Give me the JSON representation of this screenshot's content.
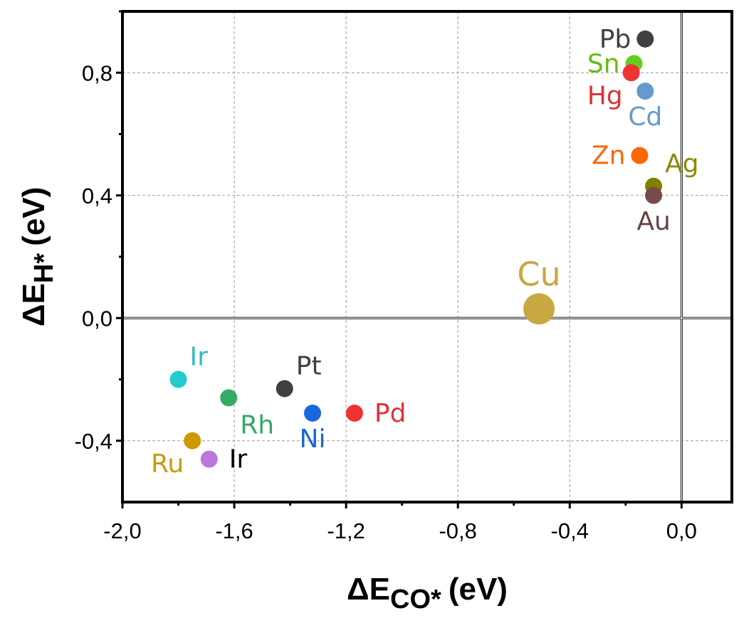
{
  "chart_data": {
    "type": "scatter",
    "xlabel_main": "ΔE",
    "xlabel_sub": "CO*",
    "xlabel_unit": "(eV)",
    "ylabel_main": "ΔE",
    "ylabel_sub": "H*",
    "ylabel_unit": "(eV)",
    "xlim": [
      -2.0,
      0.18
    ],
    "ylim": [
      -0.6,
      1.0
    ],
    "x_ticks": [
      -2.0,
      -1.6,
      -1.2,
      -0.8,
      -0.4,
      0.0
    ],
    "x_tick_labels": [
      "-2,0",
      "-1,6",
      "-1,2",
      "-0,8",
      "-0,4",
      "0,0"
    ],
    "y_ticks": [
      -0.4,
      0.0,
      0.4,
      0.8
    ],
    "y_tick_labels": [
      "-0,4",
      "0,0",
      "0,4",
      "0,8"
    ],
    "grid": true,
    "reference_lines": {
      "x": 0.0,
      "y": 0.0
    },
    "points": [
      {
        "label": "Pb",
        "x": -0.13,
        "y": 0.91,
        "color": "#404040",
        "label_color": "#404040",
        "label_pos": "left"
      },
      {
        "label": "Sn",
        "x": -0.17,
        "y": 0.83,
        "color": "#66cc22",
        "label_color": "#66bb11",
        "label_pos": "left"
      },
      {
        "label": "Hg",
        "x": -0.18,
        "y": 0.8,
        "color": "#ee3333",
        "label_color": "#e0323a",
        "label_pos": "below-left"
      },
      {
        "label": "Cd",
        "x": -0.13,
        "y": 0.74,
        "color": "#6699cc",
        "label_color": "#6699cc",
        "label_pos": "below"
      },
      {
        "label": "Zn",
        "x": -0.15,
        "y": 0.53,
        "color": "#ff6600",
        "label_color": "#ff6600",
        "label_pos": "left"
      },
      {
        "label": "Ag",
        "x": -0.1,
        "y": 0.43,
        "color": "#808000",
        "label_color": "#8b8b00",
        "label_pos": "above-right"
      },
      {
        "label": "Au",
        "x": -0.1,
        "y": 0.4,
        "color": "#7a4a4a",
        "label_color": "#6b4040",
        "label_pos": "below"
      },
      {
        "label": "Cu",
        "x": -0.51,
        "y": 0.03,
        "color": "#c8a840",
        "label_color": "#c8a840",
        "label_pos": "above",
        "size": "large"
      },
      {
        "label": "Ir",
        "x": -1.8,
        "y": -0.2,
        "color": "#22cccc",
        "label_color": "#33bbbb",
        "label_pos": "above-right"
      },
      {
        "label": "Pt",
        "x": -1.42,
        "y": -0.23,
        "color": "#404040",
        "label_color": "#404040",
        "label_pos": "above-right"
      },
      {
        "label": "Rh",
        "x": -1.62,
        "y": -0.26,
        "color": "#33aa66",
        "label_color": "#33aa66",
        "label_pos": "below-right"
      },
      {
        "label": "Ni",
        "x": -1.32,
        "y": -0.31,
        "color": "#1a66dd",
        "label_color": "#1a66dd",
        "label_pos": "below"
      },
      {
        "label": "Pd",
        "x": -1.17,
        "y": -0.31,
        "color": "#ee3333",
        "label_color": "#e0323a",
        "label_pos": "right"
      },
      {
        "label": "Ru",
        "x": -1.75,
        "y": -0.4,
        "color": "#cc9900",
        "label_color": "#c89a10",
        "label_pos": "below-left"
      },
      {
        "label": "Ir",
        "x": -1.69,
        "y": -0.46,
        "color": "#bb77dd",
        "label_color": "#000000",
        "label_pos": "right"
      }
    ]
  }
}
